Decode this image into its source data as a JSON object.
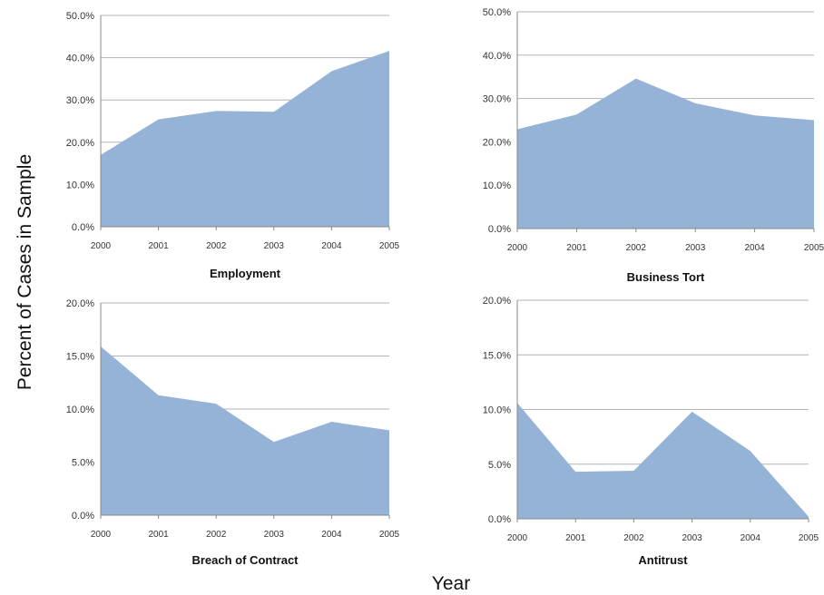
{
  "figure": {
    "ylabel": "Percent of Cases in Sample",
    "xlabel": "Year"
  },
  "colors": {
    "area_fill": "#95b3d7",
    "gridline": "#b3b3b3",
    "axis": "#888888"
  },
  "chart_data": [
    {
      "type": "area",
      "title": "Employment",
      "x": [
        "2000",
        "2001",
        "2002",
        "2003",
        "2004",
        "2005"
      ],
      "y_ticks": [
        "0.0%",
        "10.0%",
        "20.0%",
        "30.0%",
        "40.0%",
        "50.0%"
      ],
      "ylim": [
        0,
        50
      ],
      "values": [
        17.0,
        25.4,
        27.4,
        27.2,
        36.8,
        41.6
      ],
      "grid": true
    },
    {
      "type": "area",
      "title": "Business Tort",
      "x": [
        "2000",
        "2001",
        "2002",
        "2003",
        "2004",
        "2005"
      ],
      "y_ticks": [
        "0.0%",
        "10.0%",
        "20.0%",
        "30.0%",
        "40.0%",
        "50.0%"
      ],
      "ylim": [
        0,
        50
      ],
      "values": [
        22.9,
        26.3,
        34.6,
        28.9,
        26.1,
        25.0
      ],
      "grid": true
    },
    {
      "type": "area",
      "title": "Breach of Contract",
      "x": [
        "2000",
        "2001",
        "2002",
        "2003",
        "2004",
        "2005"
      ],
      "y_ticks": [
        "0.0%",
        "5.0%",
        "10.0%",
        "15.0%",
        "20.0%"
      ],
      "ylim": [
        0,
        20
      ],
      "values": [
        15.9,
        11.3,
        10.5,
        6.9,
        8.8,
        8.0
      ],
      "grid": true
    },
    {
      "type": "area",
      "title": "Antitrust",
      "x": [
        "2000",
        "2001",
        "2002",
        "2003",
        "2004",
        "2005"
      ],
      "y_ticks": [
        "0.0%",
        "5.0%",
        "10.0%",
        "15.0%",
        "20.0%"
      ],
      "ylim": [
        0,
        20
      ],
      "values": [
        10.6,
        4.3,
        4.4,
        9.8,
        6.2,
        0.2
      ],
      "grid": true
    }
  ]
}
